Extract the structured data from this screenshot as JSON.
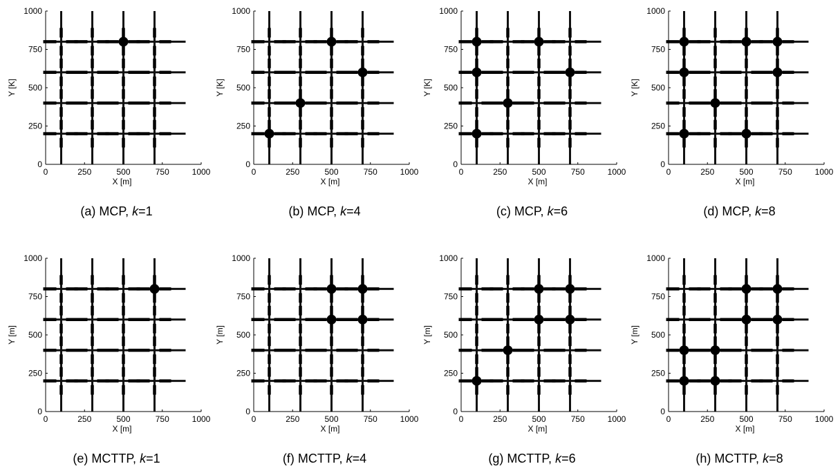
{
  "figure": {
    "panels": [
      {
        "caption_prefix": "(a) MCP, ",
        "caption_k": "k",
        "caption_suffix": "=1"
      },
      {
        "caption_prefix": "(b) MCP, ",
        "caption_k": "k",
        "caption_suffix": "=4"
      },
      {
        "caption_prefix": "(c) MCP, ",
        "caption_k": "k",
        "caption_suffix": "=6"
      },
      {
        "caption_prefix": "(d) MCP, ",
        "caption_k": "k",
        "caption_suffix": "=8"
      },
      {
        "caption_prefix": "(e) MCTTP, ",
        "caption_k": "k",
        "caption_suffix": "=1"
      },
      {
        "caption_prefix": "(f) MCTTP, ",
        "caption_k": "k",
        "caption_suffix": "=4"
      },
      {
        "caption_prefix": "(g) MCTTP, ",
        "caption_k": "k",
        "caption_suffix": "=6"
      },
      {
        "caption_prefix": "(h) MCTTP, ",
        "caption_k": "k",
        "caption_suffix": "=8"
      }
    ]
  },
  "chart_data": [
    {
      "type": "scatter",
      "caption": "(a) MCP, k=1",
      "xlabel": "X [m]",
      "ylabel": "Y [K]",
      "xlim": [
        0,
        1000
      ],
      "ylim": [
        0,
        1000
      ],
      "xticks": [
        "0",
        "250",
        "500",
        "750",
        "1000"
      ],
      "yticks": [
        "0",
        "250",
        "500",
        "750",
        "1000"
      ],
      "road_x": [
        100,
        300,
        500,
        700
      ],
      "road_y": [
        200,
        400,
        600,
        800
      ],
      "points": [
        [
          500,
          800
        ]
      ]
    },
    {
      "type": "scatter",
      "caption": "(b) MCP, k=4",
      "xlabel": "X [m]",
      "ylabel": "Y [K]",
      "xlim": [
        0,
        1000
      ],
      "ylim": [
        0,
        1000
      ],
      "xticks": [
        "0",
        "250",
        "500",
        "750",
        "1000"
      ],
      "yticks": [
        "0",
        "250",
        "500",
        "750",
        "1000"
      ],
      "road_x": [
        100,
        300,
        500,
        700
      ],
      "road_y": [
        200,
        400,
        600,
        800
      ],
      "points": [
        [
          500,
          800
        ],
        [
          700,
          600
        ],
        [
          300,
          400
        ],
        [
          100,
          200
        ]
      ]
    },
    {
      "type": "scatter",
      "caption": "(c) MCP, k=6",
      "xlabel": "X [m]",
      "ylabel": "Y [K]",
      "xlim": [
        0,
        1000
      ],
      "ylim": [
        0,
        1000
      ],
      "xticks": [
        "0",
        "250",
        "500",
        "750",
        "1000"
      ],
      "yticks": [
        "0",
        "250",
        "500",
        "750",
        "1000"
      ],
      "road_x": [
        100,
        300,
        500,
        700
      ],
      "road_y": [
        200,
        400,
        600,
        800
      ],
      "points": [
        [
          100,
          800
        ],
        [
          500,
          800
        ],
        [
          100,
          600
        ],
        [
          700,
          600
        ],
        [
          300,
          400
        ],
        [
          100,
          200
        ]
      ]
    },
    {
      "type": "scatter",
      "caption": "(d) MCP, k=8",
      "xlabel": "X [m]",
      "ylabel": "Y [K]",
      "xlim": [
        0,
        1000
      ],
      "ylim": [
        0,
        1000
      ],
      "xticks": [
        "0",
        "250",
        "500",
        "750",
        "1000"
      ],
      "yticks": [
        "0",
        "250",
        "500",
        "750",
        "1000"
      ],
      "road_x": [
        100,
        300,
        500,
        700
      ],
      "road_y": [
        200,
        400,
        600,
        800
      ],
      "points": [
        [
          100,
          800
        ],
        [
          500,
          800
        ],
        [
          700,
          800
        ],
        [
          100,
          600
        ],
        [
          700,
          600
        ],
        [
          300,
          400
        ],
        [
          100,
          200
        ],
        [
          500,
          200
        ]
      ]
    },
    {
      "type": "scatter",
      "caption": "(e) MCTTP, k=1",
      "xlabel": "X [m]",
      "ylabel": "Y [m]",
      "xlim": [
        0,
        1000
      ],
      "ylim": [
        0,
        1000
      ],
      "xticks": [
        "0",
        "250",
        "500",
        "750",
        "1000"
      ],
      "yticks": [
        "0",
        "250",
        "500",
        "750",
        "1000"
      ],
      "road_x": [
        100,
        300,
        500,
        700
      ],
      "road_y": [
        200,
        400,
        600,
        800
      ],
      "points": [
        [
          700,
          800
        ]
      ]
    },
    {
      "type": "scatter",
      "caption": "(f) MCTTP, k=4",
      "xlabel": "X [m]",
      "ylabel": "Y [m]",
      "xlim": [
        0,
        1000
      ],
      "ylim": [
        0,
        1000
      ],
      "xticks": [
        "0",
        "250",
        "500",
        "750",
        "1000"
      ],
      "yticks": [
        "0",
        "250",
        "500",
        "750",
        "1000"
      ],
      "road_x": [
        100,
        300,
        500,
        700
      ],
      "road_y": [
        200,
        400,
        600,
        800
      ],
      "points": [
        [
          500,
          800
        ],
        [
          700,
          800
        ],
        [
          500,
          600
        ],
        [
          700,
          600
        ]
      ]
    },
    {
      "type": "scatter",
      "caption": "(g) MCTTP, k=6",
      "xlabel": "X [m]",
      "ylabel": "Y [m]",
      "xlim": [
        0,
        1000
      ],
      "ylim": [
        0,
        1000
      ],
      "xticks": [
        "0",
        "250",
        "500",
        "750",
        "1000"
      ],
      "yticks": [
        "0",
        "250",
        "500",
        "750",
        "1000"
      ],
      "road_x": [
        100,
        300,
        500,
        700
      ],
      "road_y": [
        200,
        400,
        600,
        800
      ],
      "points": [
        [
          500,
          800
        ],
        [
          700,
          800
        ],
        [
          500,
          600
        ],
        [
          700,
          600
        ],
        [
          300,
          400
        ],
        [
          100,
          200
        ]
      ]
    },
    {
      "type": "scatter",
      "caption": "(h) MCTTP, k=8",
      "xlabel": "X [m]",
      "ylabel": "Y [m]",
      "xlim": [
        0,
        1000
      ],
      "ylim": [
        0,
        1000
      ],
      "xticks": [
        "0",
        "250",
        "500",
        "750",
        "1000"
      ],
      "yticks": [
        "0",
        "250",
        "500",
        "750",
        "1000"
      ],
      "road_x": [
        100,
        300,
        500,
        700
      ],
      "road_y": [
        200,
        400,
        600,
        800
      ],
      "points": [
        [
          500,
          800
        ],
        [
          700,
          800
        ],
        [
          500,
          600
        ],
        [
          700,
          600
        ],
        [
          100,
          400
        ],
        [
          300,
          400
        ],
        [
          100,
          200
        ],
        [
          300,
          200
        ]
      ]
    }
  ]
}
